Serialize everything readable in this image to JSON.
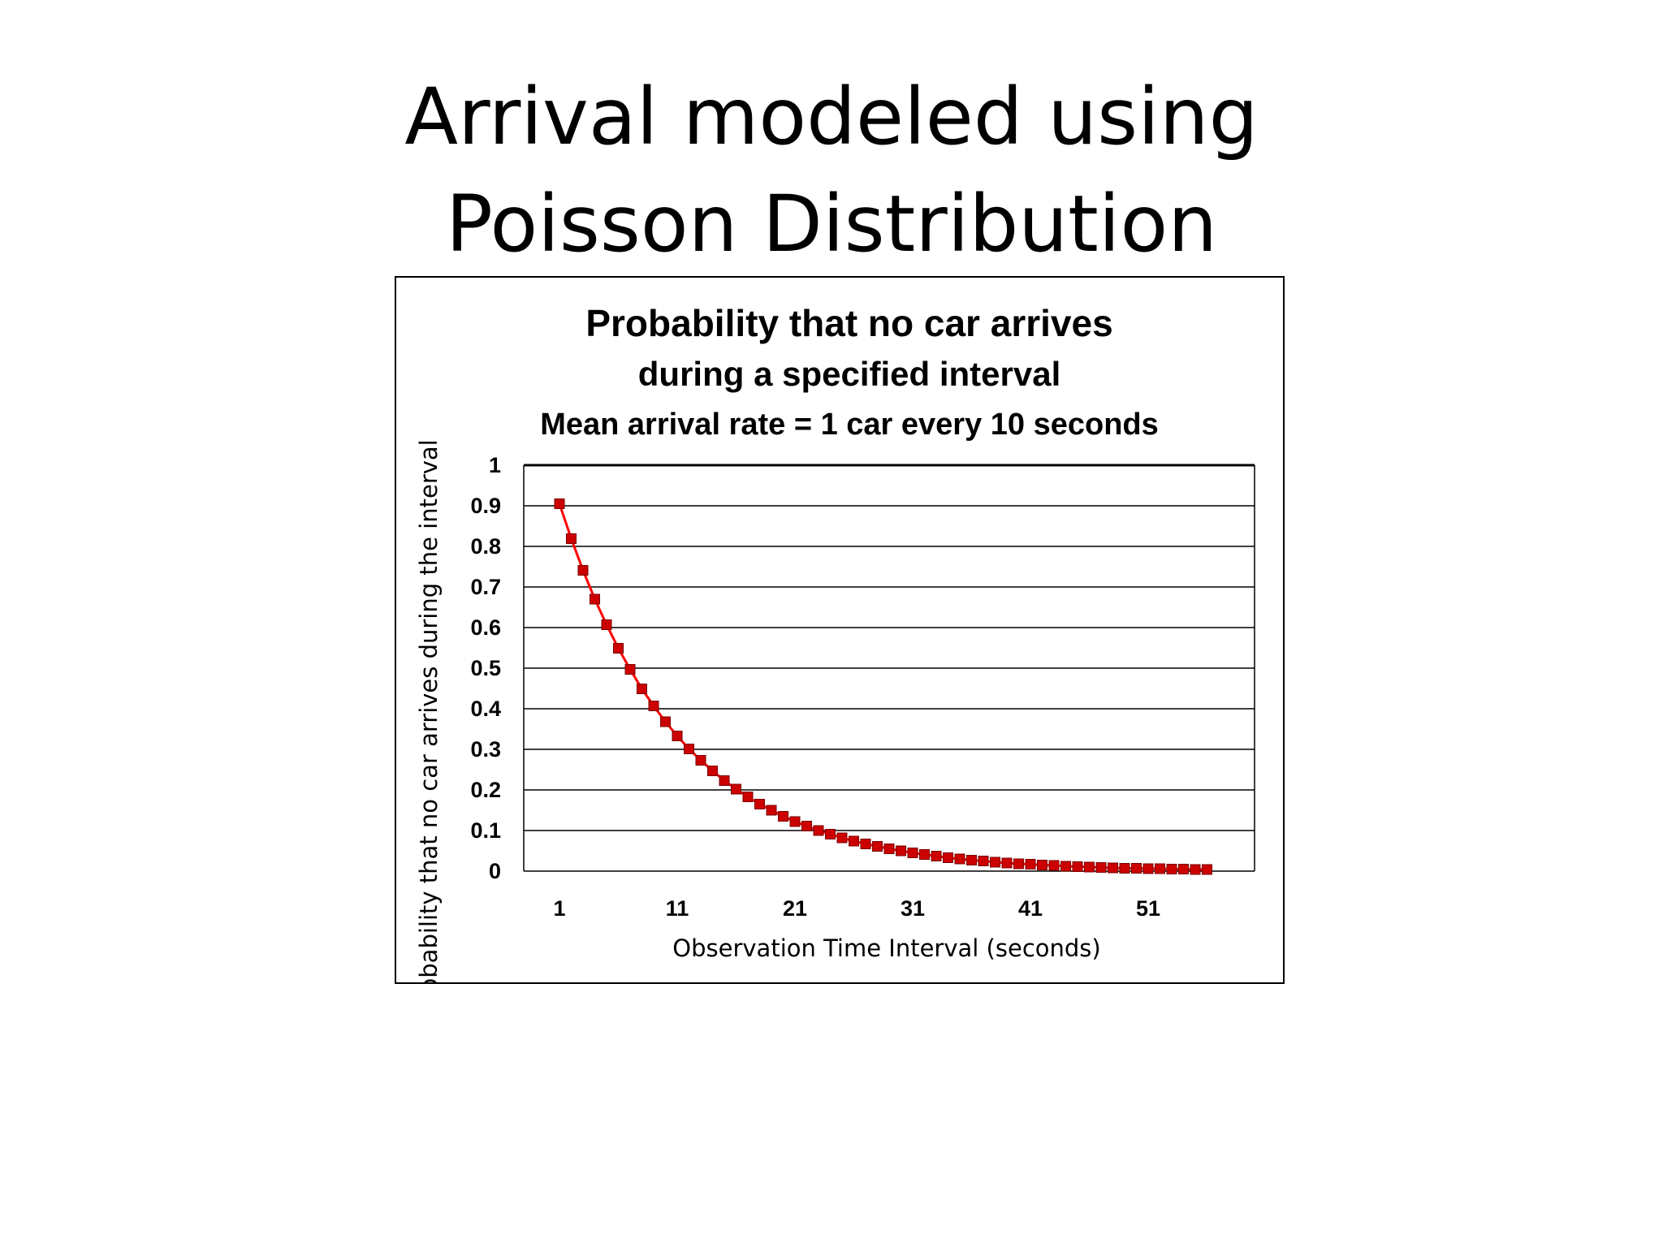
{
  "slide": {
    "title_line1": "Arrival modeled using",
    "title_line2": "Poisson Distribution"
  },
  "chart_data": {
    "type": "line",
    "title": "Probability that no car arrives",
    "subtitle": "during a specified interval",
    "subtitle2": "Mean arrival rate = 1 car every 10 seconds",
    "xlabel": "Observation Time Interval (seconds)",
    "ylabel": "Probability that no car arrives during the interval",
    "ylim": [
      0,
      1
    ],
    "xlim": [
      1,
      57
    ],
    "y_ticks": [
      "1",
      "0.9",
      "0.8",
      "0.7",
      "0.6",
      "0.5",
      "0.4",
      "0.3",
      "0.2",
      "0.1",
      "0"
    ],
    "x_ticks": [
      "1",
      "11",
      "21",
      "31",
      "41",
      "51"
    ],
    "grid": true,
    "line_color": "#ff0000",
    "marker_color": "#cc0000",
    "x": [
      1,
      2,
      3,
      4,
      5,
      6,
      7,
      8,
      9,
      10,
      11,
      12,
      13,
      14,
      15,
      16,
      17,
      18,
      19,
      20,
      21,
      22,
      23,
      24,
      25,
      26,
      27,
      28,
      29,
      30,
      31,
      32,
      33,
      34,
      35,
      36,
      37,
      38,
      39,
      40,
      41,
      42,
      43,
      44,
      45,
      46,
      47,
      48,
      49,
      50,
      51,
      52,
      53,
      54,
      55,
      56
    ],
    "series": [
      {
        "values": [
          0.905,
          0.819,
          0.741,
          0.67,
          0.607,
          0.549,
          0.497,
          0.449,
          0.407,
          0.368,
          0.333,
          0.301,
          0.273,
          0.247,
          0.223,
          0.202,
          0.183,
          0.165,
          0.15,
          0.135,
          0.122,
          0.111,
          0.1,
          0.091,
          0.082,
          0.074,
          0.067,
          0.061,
          0.055,
          0.05,
          0.045,
          0.041,
          0.037,
          0.033,
          0.03,
          0.027,
          0.025,
          0.022,
          0.02,
          0.018,
          0.017,
          0.015,
          0.014,
          0.012,
          0.011,
          0.01,
          0.009,
          0.008,
          0.007,
          0.007,
          0.006,
          0.006,
          0.005,
          0.005,
          0.004,
          0.004
        ]
      }
    ]
  }
}
